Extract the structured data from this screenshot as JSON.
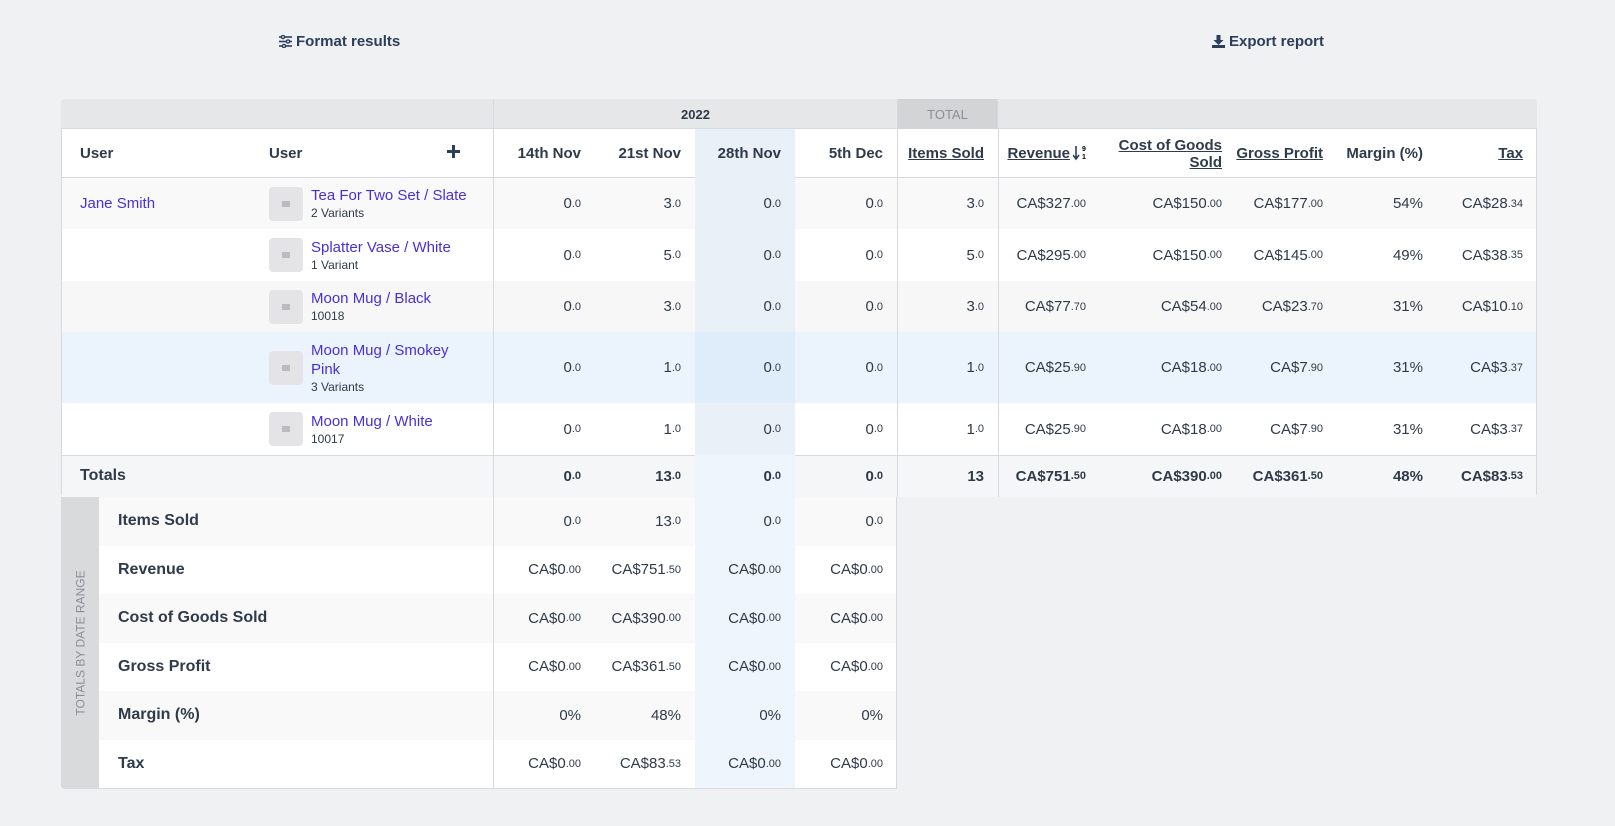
{
  "toolbar": {
    "format": "Format results",
    "export": "Export report"
  },
  "table": {
    "group_headers": {
      "year": "2022",
      "total": "TOTAL"
    },
    "columns": [
      "User",
      "User",
      "14th Nov",
      "21st Nov",
      "28th Nov",
      "5th Dec",
      "Items Sold",
      "Revenue",
      "Cost of Goods Sold",
      "Gross Profit",
      "Margin (%)",
      "Tax"
    ],
    "rows": [
      {
        "user": "Jane Smith",
        "product": "Tea For Two Set / Slate",
        "sub": "2 Variants",
        "cells": [
          "0.0",
          "3.0",
          "0.0",
          "0.0",
          "3.0",
          "CA$327.00",
          "CA$150.00",
          "CA$177.00",
          "54%",
          "CA$28.34"
        ]
      },
      {
        "product": "Splatter Vase / White",
        "sub": "1 Variant",
        "cells": [
          "0.0",
          "5.0",
          "0.0",
          "0.0",
          "5.0",
          "CA$295.00",
          "CA$150.00",
          "CA$145.00",
          "49%",
          "CA$38.35"
        ]
      },
      {
        "product": "Moon Mug / Black",
        "sub": "10018",
        "cells": [
          "0.0",
          "3.0",
          "0.0",
          "0.0",
          "3.0",
          "CA$77.70",
          "CA$54.00",
          "CA$23.70",
          "31%",
          "CA$10.10"
        ]
      },
      {
        "product": "Moon Mug / Smokey Pink",
        "sub": "3 Variants",
        "cells": [
          "0.0",
          "1.0",
          "0.0",
          "0.0",
          "1.0",
          "CA$25.90",
          "CA$18.00",
          "CA$7.90",
          "31%",
          "CA$3.37"
        ]
      },
      {
        "product": "Moon Mug / White",
        "sub": "10017",
        "cells": [
          "0.0",
          "1.0",
          "0.0",
          "0.0",
          "1.0",
          "CA$25.90",
          "CA$18.00",
          "CA$7.90",
          "31%",
          "CA$3.37"
        ]
      }
    ],
    "totals": {
      "label": "Totals",
      "cells": [
        "0.0",
        "13.0",
        "0.0",
        "0.0",
        "13",
        "CA$751.50",
        "CA$390.00",
        "CA$361.50",
        "48%",
        "CA$83.53"
      ]
    }
  },
  "date_totals": {
    "label": "TOTALS BY DATE RANGE",
    "rows": [
      {
        "label": "Items Sold",
        "cells": [
          "0.0",
          "13.0",
          "0.0",
          "0.0"
        ]
      },
      {
        "label": "Revenue",
        "cells": [
          "CA$0.00",
          "CA$751.50",
          "CA$0.00",
          "CA$0.00"
        ]
      },
      {
        "label": "Cost of Goods Sold",
        "cells": [
          "CA$0.00",
          "CA$390.00",
          "CA$0.00",
          "CA$0.00"
        ]
      },
      {
        "label": "Gross Profit",
        "cells": [
          "CA$0.00",
          "CA$361.50",
          "CA$0.00",
          "CA$0.00"
        ]
      },
      {
        "label": "Margin (%)",
        "cells": [
          "0%",
          "48%",
          "0%",
          "0%"
        ]
      },
      {
        "label": "Tax",
        "cells": [
          "CA$0.00",
          "CA$83.53",
          "CA$0.00",
          "CA$0.00"
        ]
      }
    ]
  }
}
